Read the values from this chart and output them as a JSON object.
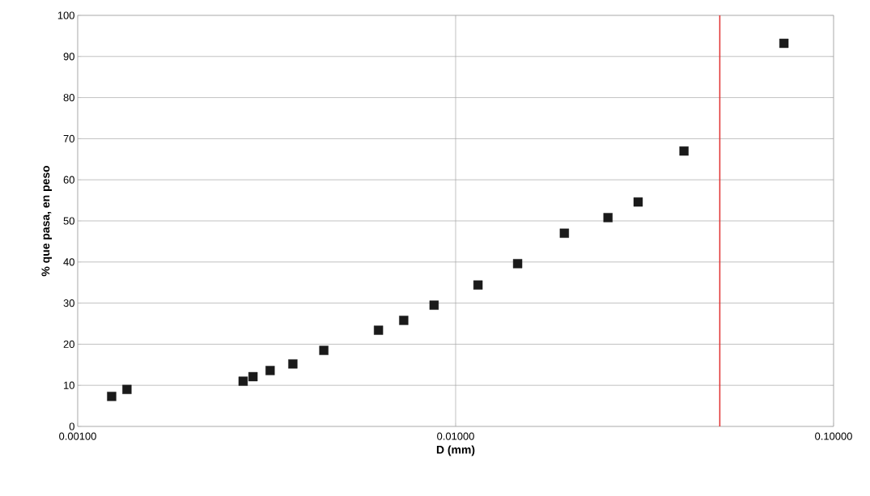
{
  "chart_data": {
    "type": "scatter",
    "xlabel": "D (mm)",
    "ylabel": "% que pasa, en peso",
    "log": "x",
    "grid": true,
    "marker": "square",
    "x": [
      0.00123,
      0.00135,
      0.00274,
      0.00291,
      0.00323,
      0.00371,
      0.00448,
      0.00625,
      0.00729,
      0.00877,
      0.01146,
      0.01459,
      0.0194,
      0.0253,
      0.0304,
      0.0402,
      0.0739
    ],
    "series": [
      {
        "color": "#1a1a1a",
        "values": [
          7.3,
          9.0,
          11.0,
          12.1,
          13.6,
          15.2,
          18.5,
          23.4,
          25.8,
          29.5,
          34.4,
          39.6,
          47.0,
          50.8,
          54.6,
          67.0,
          93.2
        ]
      }
    ],
    "xlim": [
      0.001,
      0.1
    ],
    "ylim": [
      0,
      100
    ],
    "xticks": [
      {
        "value": 0.001,
        "label": "0.00100"
      },
      {
        "value": 0.01,
        "label": "0.01000"
      },
      {
        "value": 0.1,
        "label": "0.10000"
      }
    ],
    "yticks": [
      0,
      10,
      20,
      30,
      40,
      50,
      60,
      70,
      80,
      90,
      100
    ],
    "ref_lines": [
      {
        "axis": "x",
        "value": 0.05,
        "color": "#e03030"
      }
    ]
  }
}
